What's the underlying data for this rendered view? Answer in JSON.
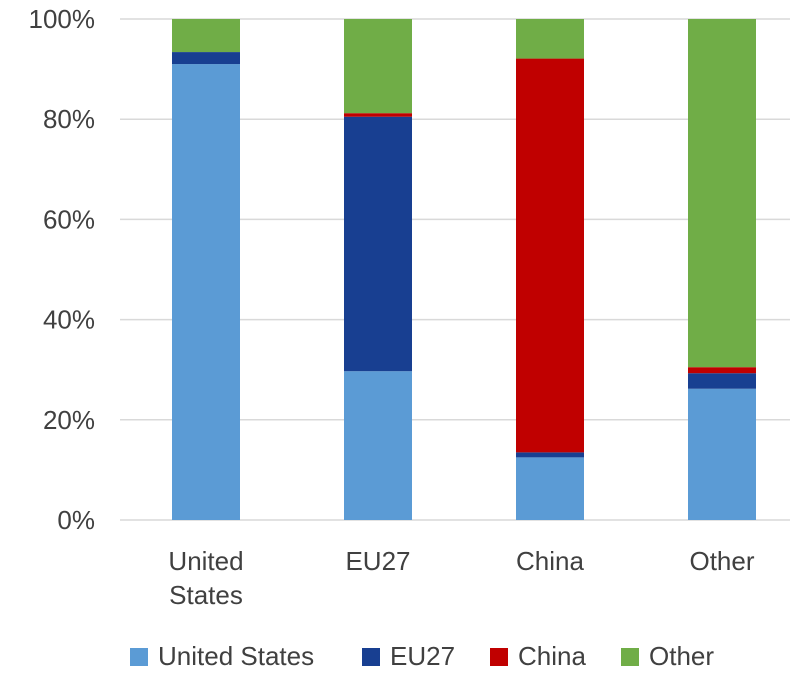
{
  "chart_data": {
    "type": "bar",
    "stacked": true,
    "percent": true,
    "title": "",
    "xlabel": "",
    "ylabel": "",
    "ylim": [
      0,
      100
    ],
    "yticks": [
      "0%",
      "20%",
      "40%",
      "60%",
      "80%",
      "100%"
    ],
    "grid": true,
    "legend_position": "bottom",
    "categories": [
      [
        "United",
        "States"
      ],
      [
        "EU27"
      ],
      [
        "China"
      ],
      [
        "Other"
      ]
    ],
    "series": [
      {
        "name": "United States",
        "color": "#5B9BD5",
        "values": [
          91,
          29.7,
          12.5,
          26.2
        ]
      },
      {
        "name": "EU27",
        "color": "#183F91",
        "values": [
          2.4,
          50.8,
          1.0,
          3.1
        ]
      },
      {
        "name": "China",
        "color": "#C00000",
        "values": [
          0,
          0.7,
          78.6,
          1.2
        ]
      },
      {
        "name": "Other",
        "color": "#70AD47",
        "values": [
          6.6,
          18.8,
          7.9,
          69.5
        ]
      }
    ]
  }
}
